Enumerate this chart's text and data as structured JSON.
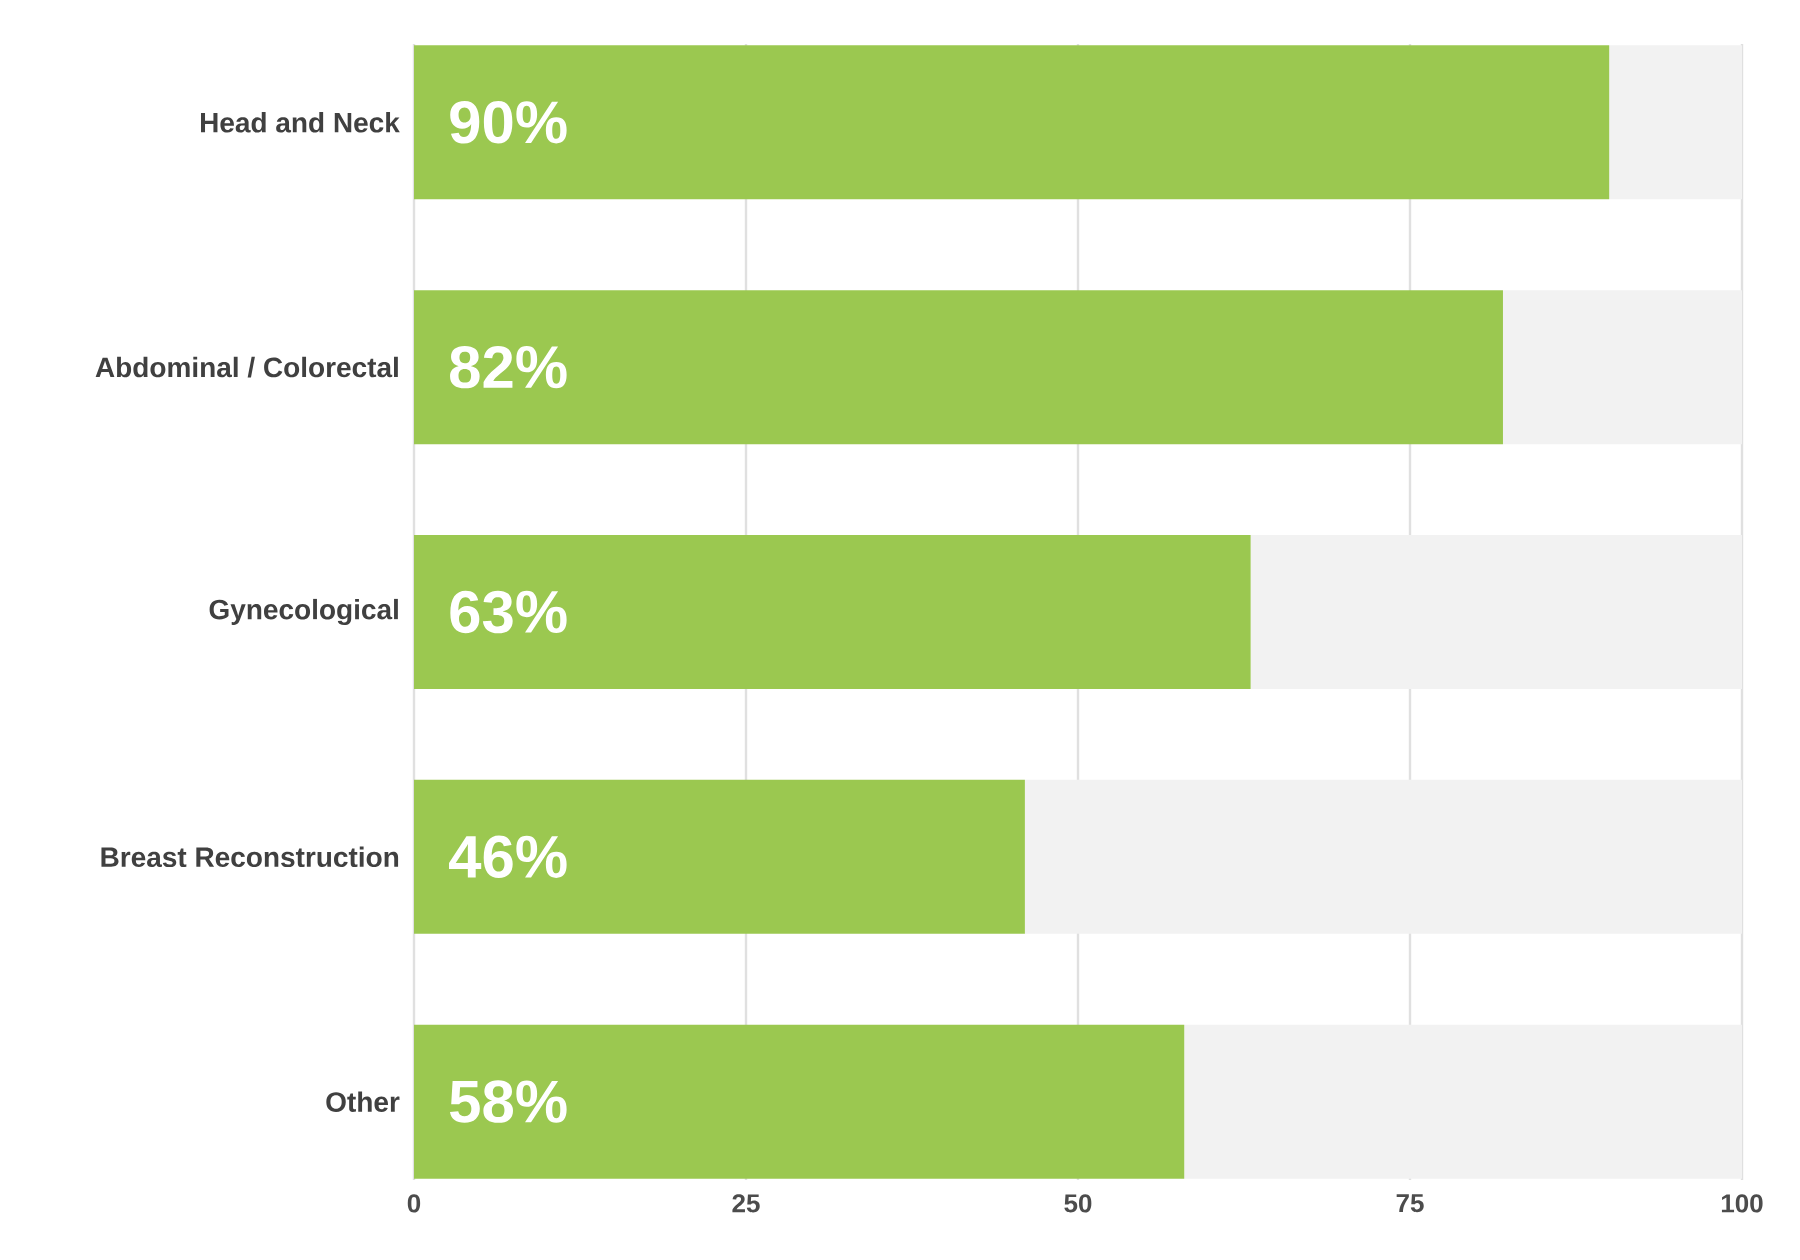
{
  "chart_data": {
    "type": "bar",
    "orientation": "horizontal",
    "stacked": true,
    "categories": [
      "Head and Neck",
      "Abdominal / Colorectal",
      "Gynecological",
      "Breast Reconstruction",
      "Other"
    ],
    "series": [
      {
        "color": "#9bc850",
        "values": [
          90,
          82,
          63,
          46,
          58
        ],
        "value_labels": [
          "90%",
          "82%",
          "63%",
          "46%",
          "58%"
        ]
      },
      {
        "color": "#f2f2f2",
        "values": [
          10,
          18,
          37,
          54,
          42
        ]
      }
    ],
    "xlim": [
      0,
      100
    ],
    "xticks": [
      0,
      25,
      50,
      75,
      100
    ],
    "grid": "x"
  }
}
